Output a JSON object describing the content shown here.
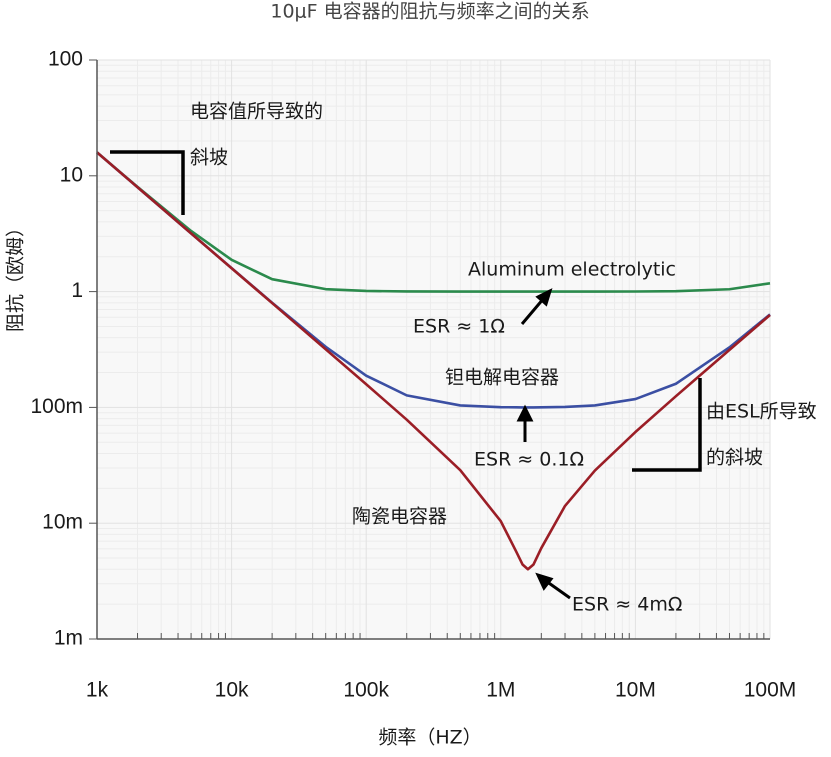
{
  "chart_data": {
    "type": "line",
    "title": "10μF 电容器的阻抗与频率之间的关系",
    "x_label": "频率（HZ）",
    "y_label": "阻抗（欧姆）",
    "log_x": true,
    "log_y": true,
    "grid": true,
    "xlim": [
      1000,
      100000000
    ],
    "ylim": [
      0.001,
      100
    ],
    "xticks": [
      {
        "value": 1000,
        "label": "1k"
      },
      {
        "value": 10000,
        "label": "10k"
      },
      {
        "value": 100000,
        "label": "100k"
      },
      {
        "value": 1000000,
        "label": "1M"
      },
      {
        "value": 10000000,
        "label": "10M"
      },
      {
        "value": 100000000,
        "label": "100M"
      }
    ],
    "yticks": [
      {
        "value": 0.001,
        "label": "1m"
      },
      {
        "value": 0.01,
        "label": "10m"
      },
      {
        "value": 0.1,
        "label": "100m"
      },
      1,
      10,
      100
    ],
    "x": [
      1000,
      2000,
      5000,
      10000,
      20000,
      50000,
      100000,
      200000,
      500000,
      1000000,
      1300000,
      1450000,
      1590000,
      1750000,
      2000000,
      3000000,
      5000000,
      10000000,
      20000000,
      50000000,
      100000000
    ],
    "series": [
      {
        "name": "Aluminum electrolytic",
        "color": "#2b8a4c",
        "values": [
          15.95,
          8.02,
          3.34,
          1.88,
          1.28,
          1.05,
          1.013,
          1.003,
          1.0,
          1.0,
          1.0,
          1.0,
          1.0,
          1.0,
          1.0,
          1.0,
          1.0,
          1.002,
          1.008,
          1.048,
          1.18
        ]
      },
      {
        "name": "钽电解电容器",
        "color": "#3b4fa3",
        "values": [
          15.92,
          7.96,
          3.18,
          1.595,
          0.802,
          0.334,
          0.188,
          0.127,
          0.104,
          0.1005,
          0.1001,
          0.1,
          0.1,
          0.1,
          0.1001,
          0.1009,
          0.104,
          0.118,
          0.16,
          0.33,
          0.636
        ]
      },
      {
        "name": "陶瓷电容器",
        "color": "#9b1e26",
        "values": [
          15.92,
          7.96,
          3.18,
          1.59,
          0.796,
          0.318,
          0.1585,
          0.0783,
          0.0287,
          0.0104,
          0.0057,
          0.0044,
          0.004,
          0.0044,
          0.0061,
          0.0141,
          0.0285,
          0.0613,
          0.125,
          0.314,
          0.628
        ]
      }
    ],
    "annotations": [
      {
        "lines": [
          "电容值所导致的",
          "斜坡"
        ]
      },
      {
        "lines": [
          "ESR ≈ 1Ω"
        ]
      },
      {
        "lines": [
          "ESR ≈ 0.1Ω"
        ]
      },
      {
        "lines": [
          "由ESL所导致",
          "的斜坡"
        ]
      },
      {
        "lines": [
          "ESR ≈ 4mΩ"
        ]
      }
    ]
  }
}
